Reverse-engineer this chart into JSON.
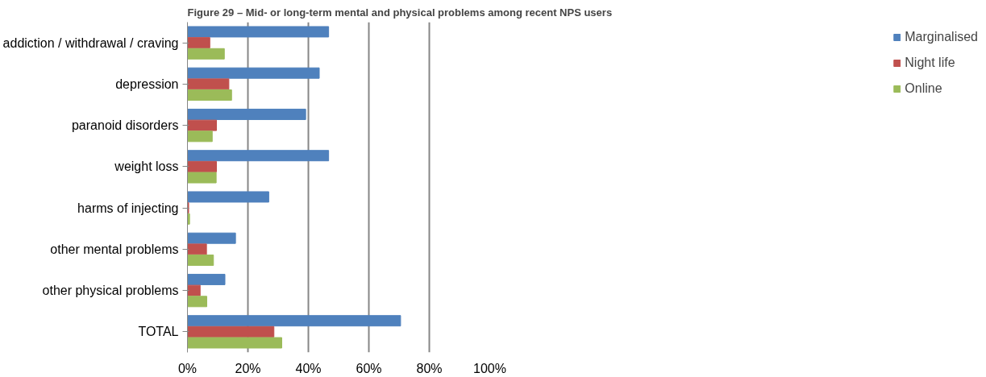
{
  "chart_data": {
    "type": "bar",
    "orientation": "horizontal",
    "title": "Figure 29 – Mid- or long-term mental and physical problems among recent NPS users",
    "categories": [
      "addiction / withdrawal / craving",
      "depression",
      "paranoid disorders",
      "weight loss",
      "harms of injecting",
      "other mental problems",
      "other physical problems",
      "TOTAL"
    ],
    "series": [
      {
        "name": "Marginalised",
        "color": "#4f81bd",
        "values": [
          46.7,
          43.6,
          39.1,
          46.7,
          26.9,
          15.9,
          12.4,
          70.5
        ]
      },
      {
        "name": "Night life",
        "color": "#c0504d",
        "values": [
          7.4,
          13.7,
          9.6,
          9.6,
          0.4,
          6.3,
          4.2,
          28.6
        ]
      },
      {
        "name": "Online",
        "color": "#9bbb59",
        "values": [
          12.2,
          14.6,
          8.2,
          9.5,
          0.7,
          8.6,
          6.4,
          31.2
        ]
      }
    ],
    "xlim": [
      0,
      100
    ],
    "xticks": [
      {
        "value": 0,
        "label": "0%"
      },
      {
        "value": 20,
        "label": "20%"
      },
      {
        "value": 40,
        "label": "40%"
      },
      {
        "value": 60,
        "label": "60%"
      },
      {
        "value": 80,
        "label": "80%"
      },
      {
        "value": 100,
        "label": "100%"
      }
    ],
    "grid": "x",
    "legend": "right"
  }
}
